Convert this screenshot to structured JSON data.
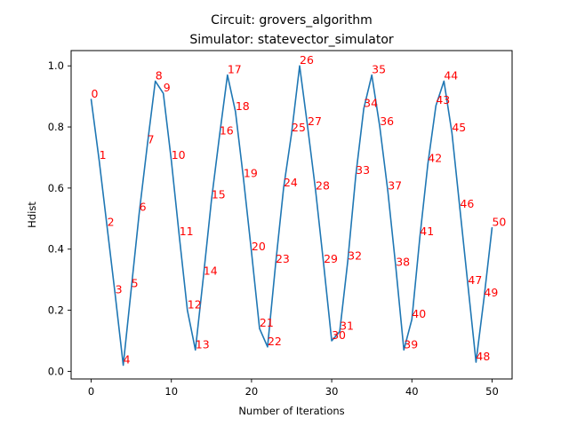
{
  "chart_data": {
    "type": "line",
    "title_line1": "Circuit: grovers_algorithm",
    "title_line2": "Simulator: statevector_simulator",
    "xlabel": "Number of Iterations",
    "ylabel": "Hdist",
    "xlim": [
      -2.5,
      52.5
    ],
    "ylim": [
      -0.025,
      1.05
    ],
    "xticks": [
      0,
      10,
      20,
      30,
      40,
      50
    ],
    "yticks": [
      0.0,
      0.2,
      0.4,
      0.6,
      0.8,
      1.0
    ],
    "xtick_labels": [
      "0",
      "10",
      "20",
      "30",
      "40",
      "50"
    ],
    "ytick_labels": [
      "0.0",
      "0.2",
      "0.4",
      "0.6",
      "0.8",
      "1.0"
    ],
    "grid": false,
    "line_color": "#1f77b4",
    "label_color": "#ff0000",
    "x": [
      0,
      1,
      2,
      3,
      4,
      5,
      6,
      7,
      8,
      9,
      10,
      11,
      12,
      13,
      14,
      15,
      16,
      17,
      18,
      19,
      20,
      21,
      22,
      23,
      24,
      25,
      26,
      27,
      28,
      29,
      30,
      31,
      32,
      33,
      34,
      35,
      36,
      37,
      38,
      39,
      40,
      41,
      42,
      43,
      44,
      45,
      46,
      47,
      48,
      49,
      50
    ],
    "y": [
      0.89,
      0.69,
      0.47,
      0.25,
      0.02,
      0.27,
      0.52,
      0.74,
      0.95,
      0.91,
      0.69,
      0.44,
      0.2,
      0.07,
      0.31,
      0.56,
      0.77,
      0.97,
      0.85,
      0.63,
      0.39,
      0.14,
      0.08,
      0.35,
      0.6,
      0.78,
      1.0,
      0.8,
      0.59,
      0.35,
      0.1,
      0.13,
      0.36,
      0.64,
      0.86,
      0.97,
      0.8,
      0.59,
      0.34,
      0.07,
      0.17,
      0.44,
      0.68,
      0.87,
      0.95,
      0.78,
      0.53,
      0.28,
      0.03,
      0.24,
      0.47
    ],
    "point_labels": [
      "0",
      "1",
      "2",
      "3",
      "4",
      "5",
      "6",
      "7",
      "8",
      "9",
      "10",
      "11",
      "12",
      "13",
      "14",
      "15",
      "16",
      "17",
      "18",
      "19",
      "20",
      "21",
      "22",
      "23",
      "24",
      "25",
      "26",
      "27",
      "28",
      "29",
      "30",
      "31",
      "32",
      "33",
      "34",
      "35",
      "36",
      "37",
      "38",
      "39",
      "40",
      "41",
      "42",
      "43",
      "44",
      "45",
      "46",
      "47",
      "48",
      "49",
      "50"
    ]
  }
}
